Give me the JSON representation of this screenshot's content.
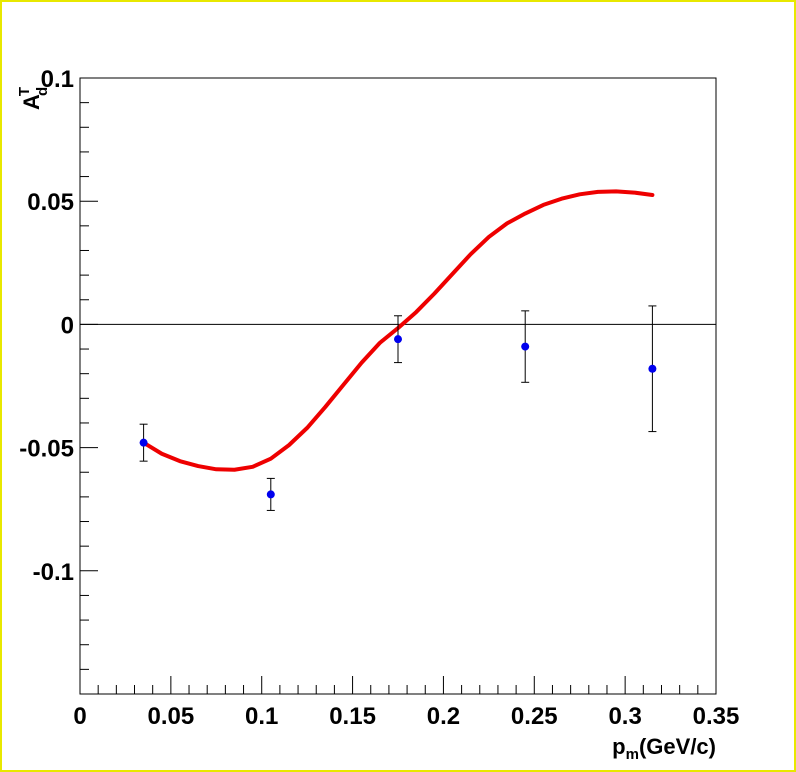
{
  "chart_data": {
    "type": "scatter",
    "xlabel": {
      "base": "p",
      "sub": "m",
      "rest": "(GeV/c)"
    },
    "ylabel": {
      "base": "A",
      "sup": "T",
      "sub": "d"
    },
    "xlim": [
      0,
      0.35
    ],
    "ylim": [
      -0.15,
      0.1
    ],
    "x_ticks": [
      "0",
      "0.05",
      "0.1",
      "0.15",
      "0.2",
      "0.25",
      "0.3",
      "0.35"
    ],
    "x_tick_values": [
      0,
      0.05,
      0.1,
      0.15,
      0.2,
      0.25,
      0.3,
      0.35
    ],
    "y_ticks": [
      "0.1",
      "0.05",
      "0",
      "-0.05",
      "-0.1"
    ],
    "y_tick_values": [
      0.1,
      0.05,
      0,
      -0.05,
      -0.1
    ],
    "zero_line": true,
    "grid": false,
    "points": {
      "color": "#0000ee",
      "x": [
        0.035,
        0.105,
        0.175,
        0.245,
        0.315
      ],
      "y": [
        -0.048,
        -0.069,
        -0.006,
        -0.009,
        -0.018
      ],
      "err": [
        0.0075,
        0.0065,
        0.0095,
        0.0145,
        0.0255
      ]
    },
    "curve": {
      "color": "#ee0000",
      "x": [
        0.035,
        0.045,
        0.055,
        0.065,
        0.075,
        0.085,
        0.095,
        0.105,
        0.115,
        0.125,
        0.135,
        0.145,
        0.155,
        0.165,
        0.175,
        0.185,
        0.195,
        0.205,
        0.215,
        0.225,
        0.235,
        0.245,
        0.255,
        0.265,
        0.275,
        0.285,
        0.295,
        0.305,
        0.315
      ],
      "y": [
        -0.048,
        -0.0525,
        -0.0555,
        -0.0575,
        -0.0588,
        -0.059,
        -0.0578,
        -0.0545,
        -0.049,
        -0.042,
        -0.0335,
        -0.0245,
        -0.0155,
        -0.0075,
        -0.0015,
        0.005,
        0.0125,
        0.0205,
        0.0285,
        0.0355,
        0.041,
        0.045,
        0.0485,
        0.051,
        0.0528,
        0.0538,
        0.054,
        0.0535,
        0.0525
      ]
    }
  }
}
